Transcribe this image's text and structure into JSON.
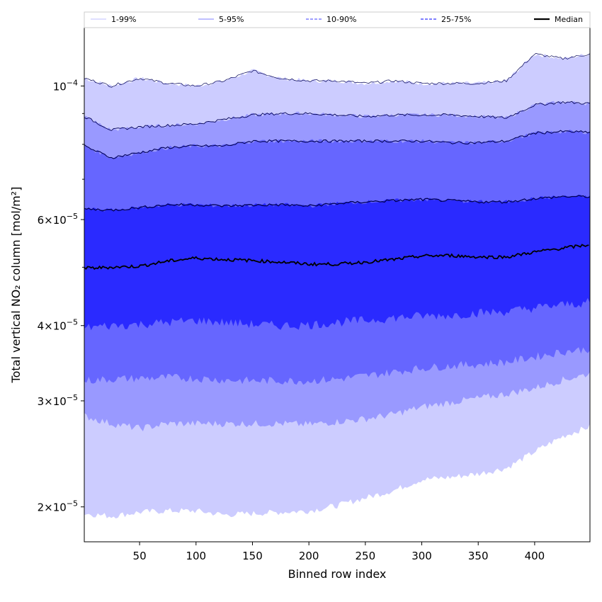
{
  "chart_data": {
    "type": "area",
    "xlabel": "Binned row index",
    "ylabel": "Total vertical NO₂ column [mol/m²]",
    "xlim": [
      1,
      449
    ],
    "ylim": [
      1.75e-05,
      0.000125
    ],
    "yscale": "log",
    "grid": false,
    "legend_position": "top",
    "x_ticks": [
      50,
      100,
      150,
      200,
      250,
      300,
      350,
      400
    ],
    "y_ticks": [
      {
        "value": 2e-05,
        "mantissa": "2",
        "base": "10",
        "exp": "−5"
      },
      {
        "value": 3e-05,
        "mantissa": "3",
        "base": "10",
        "exp": "−5"
      },
      {
        "value": 4e-05,
        "mantissa": "4",
        "base": "10",
        "exp": "−5"
      },
      {
        "value": 6e-05,
        "mantissa": "6",
        "base": "10",
        "exp": "−5"
      },
      {
        "value": 0.0001,
        "mantissa": "",
        "base": "10",
        "exp": "−4"
      }
    ],
    "legend": [
      {
        "label": "1-99%",
        "color": "#ccccff",
        "style": "solid"
      },
      {
        "label": "5-95%",
        "color": "#9999ff",
        "style": "solid"
      },
      {
        "label": "10-90%",
        "color": "#6666ff",
        "style": "dashed"
      },
      {
        "label": "25-75%",
        "color": "#3333ff",
        "style": "dashed"
      },
      {
        "label": "Median",
        "color": "#000000",
        "style": "solid"
      }
    ],
    "x": [
      1,
      25,
      50,
      75,
      100,
      125,
      150,
      175,
      200,
      225,
      250,
      275,
      300,
      325,
      350,
      375,
      400,
      425,
      449
    ],
    "series": [
      {
        "name": "1-99%",
        "color": "#ccccff",
        "upper": [
          0.000103,
          0.0001,
          0.000103,
          0.000101,
          0.0001,
          0.000102,
          0.000106,
          0.000103,
          0.000102,
          0.000102,
          0.000101,
          0.000102,
          0.000101,
          0.000101,
          0.000101,
          0.000102,
          0.000113,
          0.000111,
          0.000113
        ],
        "lower": [
          1.95e-05,
          1.93e-05,
          1.96e-05,
          1.97e-05,
          1.97e-05,
          1.94e-05,
          1.95e-05,
          1.96e-05,
          1.97e-05,
          2.01e-05,
          2.07e-05,
          2.13e-05,
          2.22e-05,
          2.24e-05,
          2.27e-05,
          2.32e-05,
          2.47e-05,
          2.62e-05,
          2.72e-05
        ]
      },
      {
        "name": "5-95%",
        "color": "#9999ff",
        "upper": [
          8.9e-05,
          8.45e-05,
          8.55e-05,
          8.6e-05,
          8.65e-05,
          8.8e-05,
          8.95e-05,
          9e-05,
          9e-05,
          8.95e-05,
          8.9e-05,
          8.95e-05,
          8.95e-05,
          8.95e-05,
          8.9e-05,
          8.85e-05,
          9.3e-05,
          9.4e-05,
          9.35e-05
        ],
        "lower": [
          2.83e-05,
          2.75e-05,
          2.7e-05,
          2.75e-05,
          2.75e-05,
          2.75e-05,
          2.75e-05,
          2.75e-05,
          2.74e-05,
          2.77e-05,
          2.8e-05,
          2.85e-05,
          2.93e-05,
          2.98e-05,
          3.03e-05,
          3.08e-05,
          3.15e-05,
          3.25e-05,
          3.33e-05
        ]
      },
      {
        "name": "10-90%",
        "color": "#6666ff",
        "upper": [
          7.95e-05,
          7.6e-05,
          7.75e-05,
          7.9e-05,
          7.95e-05,
          7.95e-05,
          8.1e-05,
          8.1e-05,
          8.1e-05,
          8.1e-05,
          8.1e-05,
          8.1e-05,
          8.1e-05,
          8.05e-05,
          8.05e-05,
          8.1e-05,
          8.35e-05,
          8.4e-05,
          8.38e-05
        ],
        "lower": [
          3.24e-05,
          3.26e-05,
          3.27e-05,
          3.28e-05,
          3.27e-05,
          3.25e-05,
          3.24e-05,
          3.24e-05,
          3.24e-05,
          3.26e-05,
          3.3e-05,
          3.35e-05,
          3.4e-05,
          3.43e-05,
          3.45e-05,
          3.48e-05,
          3.55e-05,
          3.62e-05,
          3.66e-05
        ]
      },
      {
        "name": "25-75%",
        "color": "#2a2aff",
        "upper": [
          6.25e-05,
          6.22e-05,
          6.28e-05,
          6.35e-05,
          6.35e-05,
          6.32e-05,
          6.34e-05,
          6.35e-05,
          6.32e-05,
          6.38e-05,
          6.42e-05,
          6.45e-05,
          6.48e-05,
          6.45e-05,
          6.42e-05,
          6.42e-05,
          6.5e-05,
          6.55e-05,
          6.55e-05
        ],
        "lower": [
          3.97e-05,
          4e-05,
          4.02e-05,
          4.05e-05,
          4.08e-05,
          4.05e-05,
          4.02e-05,
          4e-05,
          4.01e-05,
          4.05e-05,
          4.08e-05,
          4.12e-05,
          4.15e-05,
          4.16e-05,
          4.2e-05,
          4.22e-05,
          4.28e-05,
          4.33e-05,
          4.37e-05
        ]
      },
      {
        "name": "Median",
        "color": "#000000",
        "values": [
          4.98e-05,
          5e-05,
          5.02e-05,
          5.12e-05,
          5.18e-05,
          5.15e-05,
          5.13e-05,
          5.1e-05,
          5.06e-05,
          5.06e-05,
          5.1e-05,
          5.15e-05,
          5.22e-05,
          5.23e-05,
          5.2e-05,
          5.2e-05,
          5.3e-05,
          5.38e-05,
          5.45e-05
        ]
      }
    ]
  }
}
